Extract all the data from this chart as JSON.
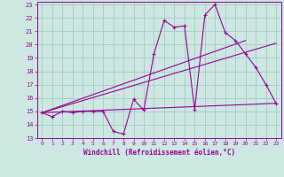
{
  "xlabel": "Windchill (Refroidissement éolien,°C)",
  "background_color": "#cce8e0",
  "grid_color": "#aacccc",
  "line_color": "#990099",
  "xlim": [
    -0.5,
    23.5
  ],
  "ylim": [
    13,
    23.2
  ],
  "yticks": [
    13,
    14,
    15,
    16,
    17,
    18,
    19,
    20,
    21,
    22,
    23
  ],
  "xticks": [
    0,
    1,
    2,
    3,
    4,
    5,
    6,
    7,
    8,
    9,
    10,
    11,
    12,
    13,
    14,
    15,
    16,
    17,
    18,
    19,
    20,
    21,
    22,
    23
  ],
  "line1_x": [
    0,
    1,
    2,
    3,
    4,
    5,
    6,
    7,
    8,
    9,
    10,
    11,
    12,
    13,
    14,
    15,
    16,
    17,
    18,
    19,
    20,
    21,
    22,
    23
  ],
  "line1_y": [
    14.9,
    14.6,
    15.0,
    14.9,
    15.0,
    15.0,
    15.0,
    13.5,
    13.3,
    15.9,
    15.1,
    19.3,
    21.8,
    21.3,
    21.4,
    15.1,
    22.2,
    23.0,
    20.9,
    20.3,
    19.3,
    18.3,
    17.0,
    15.6
  ],
  "line2_x": [
    0,
    23
  ],
  "line2_y": [
    14.9,
    15.6
  ],
  "line3_x": [
    0,
    23
  ],
  "line3_y": [
    14.9,
    20.1
  ],
  "line4_x": [
    0,
    20
  ],
  "line4_y": [
    14.9,
    20.3
  ]
}
